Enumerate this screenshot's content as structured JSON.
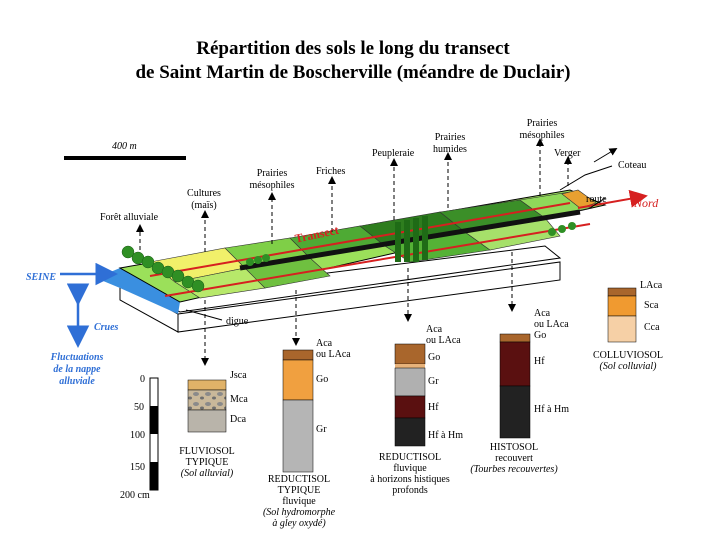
{
  "title_line1": "Répartition des sols le long du transect",
  "title_line2": "de Saint Martin de Boscherville (méandre de Duclair)",
  "scale_label": "400 m",
  "landuse": {
    "foret": "Forêt alluviale",
    "cultures_l1": "Cultures",
    "cultures_l2": "(maïs)",
    "prairies_meso_l1": "Prairies",
    "prairies_meso_l2": "mésophiles",
    "friches": "Friches",
    "peupleraie": "Peupleraie",
    "prairies_hum_l1": "Prairies",
    "prairies_hum_l2": "humides",
    "prairies_meso2_l1": "Prairies",
    "prairies_meso2_l2": "mésophiles",
    "verger": "Verger",
    "coteau": "Coteau",
    "route": "route",
    "nord": "Nord",
    "transect": "Transect",
    "digue": "digue"
  },
  "left_labels": {
    "seine": "SEINE",
    "crues": "Crues",
    "fluct_l1": "Fluctuations",
    "fluct_l2": "de la nappe",
    "fluct_l3": "alluviale"
  },
  "depth_scale": [
    "0",
    "50",
    "100",
    "150",
    "200 cm"
  ],
  "profiles": {
    "fluviosol": {
      "horizons": [
        "Jsca",
        "Mca",
        "Dca"
      ],
      "name_l1": "FLUVIOSOL",
      "name_l2": "TYPIQUE",
      "name_l3": "(Sol alluvial)"
    },
    "reductisol": {
      "top_l1": "Aca",
      "top_l2": "ou LAca",
      "horizons": [
        "Go",
        "Gr"
      ],
      "name_l1": "REDUCTISOL",
      "name_l2": "TYPIQUE",
      "name_l3": "fluvique",
      "name_l4": "(Sol hydromorphe",
      "name_l5": "à gley oxydé)"
    },
    "reductisol_hist": {
      "top_l1": "Aca",
      "top_l2": "ou LAca",
      "horizons": [
        "Go",
        "Gr",
        "Hf",
        "Hf à Hm"
      ],
      "name_l1": "REDUCTISOL",
      "name_l2": "fluvique",
      "name_l3": "à horizons histiques",
      "name_l4": "profonds"
    },
    "histosol": {
      "top_l1": "Aca",
      "top_l2": "ou LAca",
      "top_l3": "Go",
      "horizons": [
        "Hf",
        "Hf à Hm"
      ],
      "name_l1": "HISTOSOL",
      "name_l2": "recouvert",
      "name_l3": "(Tourbes recouvertes)"
    },
    "colluviosol": {
      "horizons": [
        "LAca",
        "Sca",
        "Cca"
      ],
      "name_l1": "COLLUVIOSOL",
      "name_l2": "(Sol colluvial)"
    }
  },
  "colors": {
    "water": "#3a8fe0",
    "light_green": "#9be05a",
    "mid_green": "#5fb83a",
    "dark_green": "#2e7d1e",
    "yellow": "#f1f06a",
    "red_line": "#d62020",
    "blue_label": "#2f6fd6"
  }
}
